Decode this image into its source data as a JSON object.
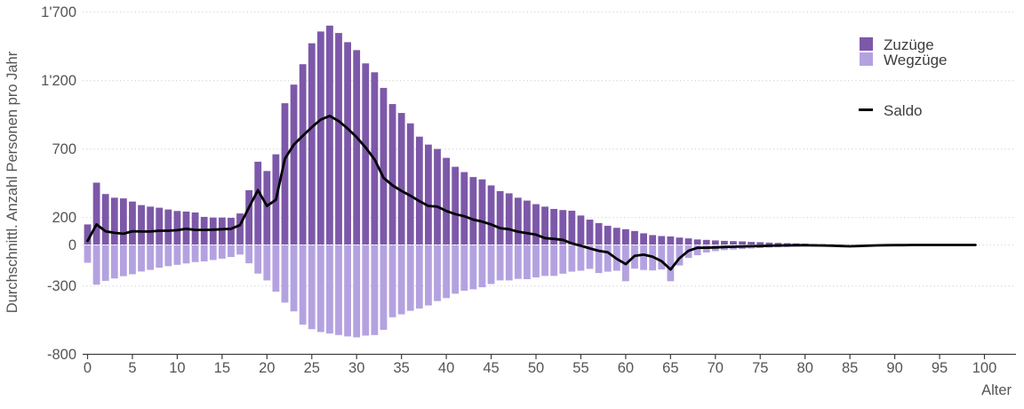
{
  "chart_data": {
    "type": "bar",
    "title": "",
    "xlabel": "Alter",
    "ylabel": "Durchschnittl. Anzahl Personen pro Jahr",
    "grid": "horizontal-dotted",
    "legend_position": "top-right",
    "xlim": [
      0,
      103
    ],
    "ylim": [
      -800,
      1750
    ],
    "x_ticks": [
      0,
      5,
      10,
      15,
      20,
      25,
      30,
      35,
      40,
      45,
      50,
      55,
      60,
      65,
      70,
      75,
      80,
      85,
      90,
      95,
      100
    ],
    "y_ticks": [
      {
        "value": 1700,
        "label": "1'700"
      },
      {
        "value": 1200,
        "label": "1'200"
      },
      {
        "value": 700,
        "label": "700"
      },
      {
        "value": 200,
        "label": "200"
      },
      {
        "value": 0,
        "label": "0"
      },
      {
        "value": -300,
        "label": "-300"
      },
      {
        "value": -800,
        "label": "-800"
      }
    ],
    "ages": [
      0,
      1,
      2,
      3,
      4,
      5,
      6,
      7,
      8,
      9,
      10,
      11,
      12,
      13,
      14,
      15,
      16,
      17,
      18,
      19,
      20,
      21,
      22,
      23,
      24,
      25,
      26,
      27,
      28,
      29,
      30,
      31,
      32,
      33,
      34,
      35,
      36,
      37,
      38,
      39,
      40,
      41,
      42,
      43,
      44,
      45,
      46,
      47,
      48,
      49,
      50,
      51,
      52,
      53,
      54,
      55,
      56,
      57,
      58,
      59,
      60,
      61,
      62,
      63,
      64,
      65,
      66,
      67,
      68,
      69,
      70,
      71,
      72,
      73,
      74,
      75,
      76,
      77,
      78,
      79,
      80,
      81,
      82,
      83,
      84,
      85,
      86,
      87,
      88,
      89,
      90,
      91,
      92,
      93,
      94,
      95,
      96,
      97,
      98,
      99
    ],
    "series": [
      {
        "name": "Zuzüge",
        "type": "bar",
        "color": "#7D58A9",
        "values": [
          150,
          455,
          372,
          345,
          340,
          317,
          291,
          280,
          272,
          259,
          248,
          244,
          237,
          205,
          200,
          200,
          198,
          230,
          400,
          608,
          540,
          662,
          1035,
          1171,
          1320,
          1473,
          1559,
          1602,
          1548,
          1481,
          1423,
          1326,
          1261,
          1147,
          1029,
          964,
          888,
          791,
          733,
          701,
          636,
          571,
          532,
          496,
          479,
          435,
          393,
          377,
          345,
          324,
          298,
          280,
          263,
          255,
          250,
          215,
          185,
          160,
          140,
          125,
          115,
          102,
          85,
          72,
          65,
          62,
          54,
          48,
          40,
          37,
          33,
          30,
          28,
          26,
          22,
          20,
          17,
          15,
          13,
          11,
          9,
          7,
          6,
          5,
          4,
          4,
          3,
          3,
          2,
          2,
          2,
          1,
          1,
          1,
          1,
          1,
          0,
          0,
          0,
          0
        ]
      },
      {
        "name": "Wegzüge",
        "type": "bar",
        "color": "#B4A2E0",
        "values": [
          -130,
          -290,
          -262,
          -245,
          -228,
          -214,
          -194,
          -182,
          -166,
          -155,
          -145,
          -135,
          -125,
          -120,
          -110,
          -100,
          -88,
          -70,
          -134,
          -209,
          -259,
          -341,
          -421,
          -485,
          -582,
          -615,
          -636,
          -647,
          -658,
          -668,
          -675,
          -662,
          -658,
          -620,
          -528,
          -507,
          -481,
          -464,
          -442,
          -410,
          -388,
          -356,
          -334,
          -324,
          -309,
          -285,
          -259,
          -259,
          -248,
          -250,
          -237,
          -226,
          -226,
          -210,
          -195,
          -188,
          -175,
          -205,
          -195,
          -188,
          -265,
          -173,
          -183,
          -186,
          -179,
          -265,
          -150,
          -95,
          -75,
          -55,
          -45,
          -38,
          -34,
          -30,
          -26,
          -23,
          -19,
          -17,
          -15,
          -13,
          -11,
          -9,
          -8,
          -7,
          -6,
          -5,
          -4,
          -4,
          -3,
          -3,
          -2,
          -2,
          -1,
          -1,
          -1,
          -1,
          0,
          0,
          0,
          0
        ]
      },
      {
        "name": "Saldo",
        "type": "line",
        "color": "#000000",
        "values": [
          30,
          150,
          100,
          88,
          82,
          100,
          98,
          98,
          104,
          104,
          108,
          118,
          110,
          110,
          112,
          115,
          118,
          145,
          275,
          400,
          285,
          330,
          630,
          733,
          798,
          860,
          915,
          942,
          905,
          850,
          787,
          712,
          625,
          490,
          435,
          395,
          360,
          320,
          285,
          280,
          248,
          225,
          210,
          185,
          170,
          150,
          123,
          115,
          97,
          86,
          75,
          50,
          44,
          37,
          11,
          -6,
          -25,
          -43,
          -54,
          -101,
          -140,
          -80,
          -71,
          -86,
          -118,
          -179,
          -97,
          -43,
          -21,
          -20,
          -18,
          -15,
          -13,
          -11,
          -9,
          -8,
          -6,
          -4,
          -3,
          -2,
          -2,
          -3,
          -4,
          -6,
          -8,
          -10,
          -8,
          -5,
          -3,
          -2,
          -1,
          -1,
          0,
          0,
          0,
          0,
          0,
          0,
          0,
          0
        ]
      }
    ]
  },
  "colors": {
    "background": "#ffffff",
    "grid": "#d2d2d2",
    "axis": "#3f3f3f",
    "tick_text": "#555555",
    "legend_text": "#3d3d3d"
  }
}
